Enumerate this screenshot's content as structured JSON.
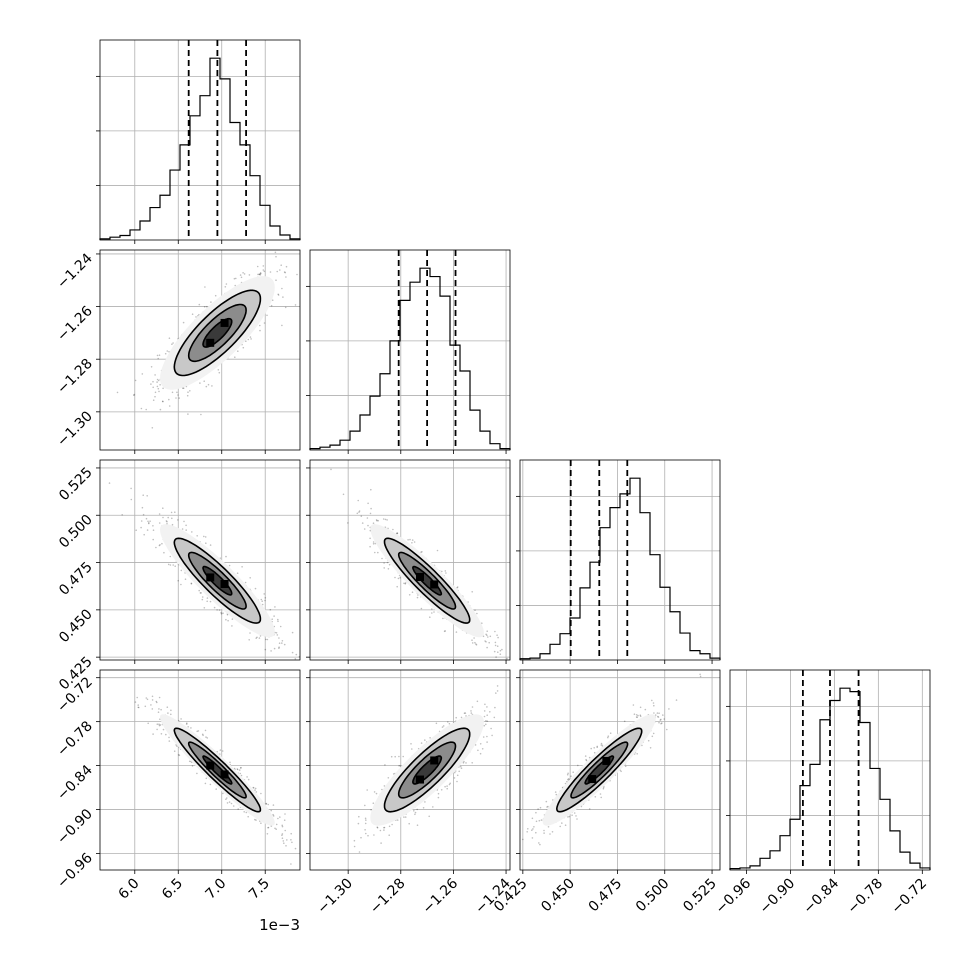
{
  "chart_data": {
    "type": "corner",
    "title": "",
    "params": [
      {
        "range": [
          5.6,
          7.9
        ],
        "ticks": [
          6.0,
          6.5,
          7.0,
          7.5
        ],
        "tick_labels": [
          "6.0",
          "6.5",
          "7.0",
          "7.5"
        ],
        "offset_label": "1e−3",
        "quantiles": [
          6.62,
          6.95,
          7.28
        ]
      },
      {
        "range": [
          -1.3145,
          -1.2385
        ],
        "ticks": [
          -1.3,
          -1.28,
          -1.26,
          -1.24
        ],
        "tick_labels": [
          "−1.30",
          "−1.28",
          "−1.26",
          "−1.24"
        ],
        "offset_label": "",
        "quantiles": [
          -1.2808,
          -1.27,
          -1.2592
        ]
      },
      {
        "range": [
          0.4235,
          0.5292
        ],
        "ticks": [
          0.425,
          0.45,
          0.475,
          0.5,
          0.525
        ],
        "tick_labels": [
          "0.425",
          "0.450",
          "0.475",
          "0.500",
          "0.525"
        ],
        "offset_label": "",
        "quantiles": [
          0.4503,
          0.4654,
          0.4802
        ]
      },
      {
        "range": [
          -0.9825,
          -0.7095
        ],
        "ticks": [
          -0.96,
          -0.9,
          -0.84,
          -0.78,
          -0.72
        ],
        "tick_labels": [
          "−0.96",
          "−0.90",
          "−0.84",
          "−0.78",
          "−0.72"
        ],
        "offset_label": "",
        "quantiles": [
          -0.883,
          -0.846,
          -0.807
        ]
      }
    ],
    "histograms": [
      {
        "counts": [
          2,
          5,
          8,
          18,
          34,
          58,
          80,
          125,
          170,
          222,
          258,
          325,
          288,
          210,
          170,
          115,
          62,
          25,
          9,
          2
        ]
      },
      {
        "counts": [
          2,
          4,
          7,
          14,
          27,
          50,
          77,
          109,
          156,
          214,
          240,
          260,
          248,
          220,
          150,
          113,
          57,
          27,
          9,
          2
        ]
      },
      {
        "counts": [
          2,
          3,
          10,
          25,
          42,
          67,
          115,
          156,
          211,
          243,
          265,
          290,
          235,
          168,
          116,
          77,
          43,
          15,
          10,
          3
        ]
      },
      {
        "counts": [
          2,
          3,
          6,
          17,
          28,
          50,
          74,
          123,
          154,
          219,
          247,
          265,
          260,
          215,
          148,
          103,
          57,
          26,
          10,
          3
        ]
      }
    ],
    "pairs": [
      {
        "x": 0,
        "y": 1,
        "corr": 0.8
      },
      {
        "x": 0,
        "y": 2,
        "corr": -0.9
      },
      {
        "x": 1,
        "y": 2,
        "corr": -0.92
      },
      {
        "x": 0,
        "y": 3,
        "corr": -0.95
      },
      {
        "x": 1,
        "y": 3,
        "corr": 0.86
      },
      {
        "x": 2,
        "y": 3,
        "corr": 0.93
      }
    ],
    "grid": true,
    "contour_levels": [
      0.5,
      1.0,
      1.5,
      2.0
    ]
  }
}
